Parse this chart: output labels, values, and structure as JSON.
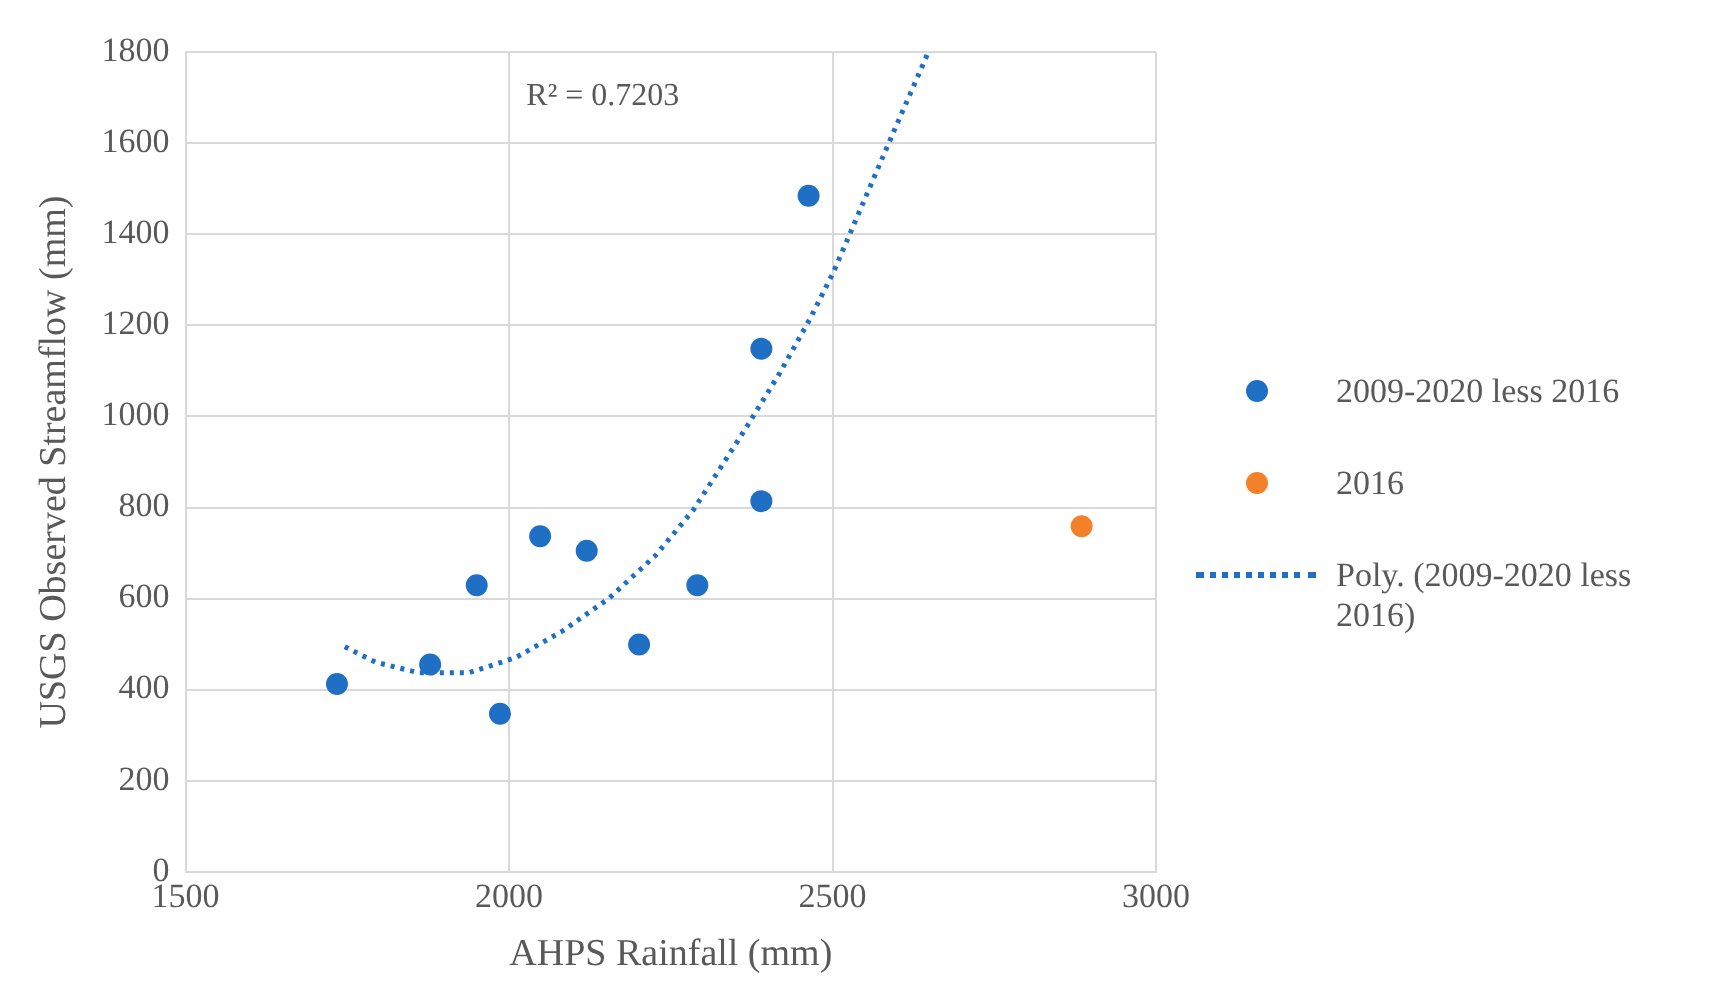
{
  "chart_data": {
    "type": "scatter",
    "xlabel": "AHPS Rainfall (mm)",
    "ylabel": "USGS Observed Streamflow (mm)",
    "xlim": [
      1500,
      3000
    ],
    "xticks": [
      1500,
      2000,
      2500,
      3000
    ],
    "ylim": [
      0,
      1800
    ],
    "yticks": [
      0,
      200,
      400,
      600,
      800,
      1000,
      1200,
      1400,
      1600,
      1800
    ],
    "grid": true,
    "legend": "right",
    "marker": "circle",
    "annotations": [
      "R² = 0.7203"
    ],
    "series": [
      {
        "name": "2009-2020 less 2016",
        "color": "#1f6fc5",
        "x": [
          1734,
          1878,
          1950,
          1986,
          2048,
          2120,
          2201,
          2291,
          2390,
          2390,
          2463
        ],
        "values": [
          412,
          455,
          629,
          347,
          737,
          705,
          499,
          629,
          1149,
          814,
          1485
        ]
      },
      {
        "name": "2016",
        "color": "#f5802a",
        "x": [
          2885
        ],
        "values": [
          759
        ]
      },
      {
        "name": "Poly. (2009-2020 less 2016)",
        "type": "line",
        "line_style": "dotted",
        "marker": "none",
        "color": "#1f6fc5",
        "x": [
          1746,
          1794,
          1860,
          1938,
          2010,
          2082,
          2154,
          2226,
          2285,
          2357,
          2417,
          2465,
          2501,
          2549,
          2597,
          2648
        ],
        "values": [
          494,
          460,
          437,
          437,
          470,
          528,
          600,
          694,
          795,
          954,
          1092,
          1214,
          1316,
          1475,
          1634,
          1800
        ]
      }
    ]
  }
}
